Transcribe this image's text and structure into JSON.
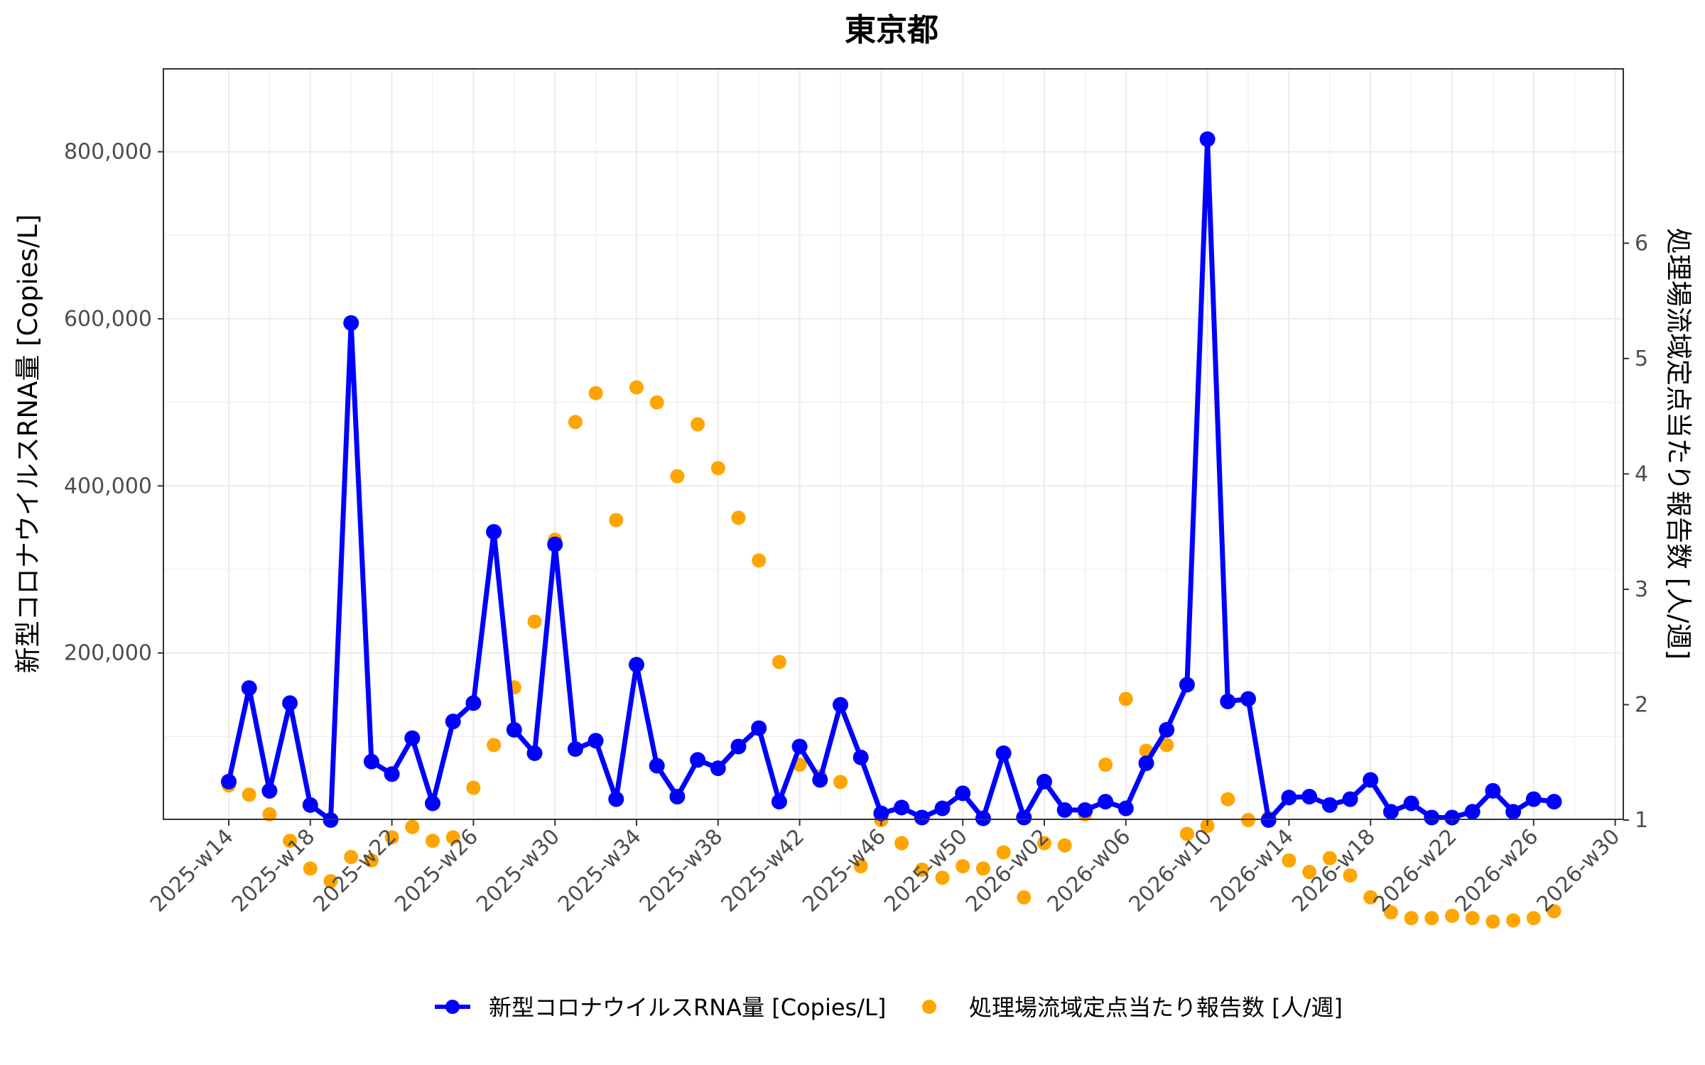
{
  "chart_data": {
    "type": "line",
    "title": "東京都",
    "y_left_label": "新型コロナウイルスRNA量 [Copies/L]",
    "y_right_label": "処理場流域定点当たり報告数 [人/週]",
    "y_left_ticks": [
      "200,000",
      "400,000",
      "600,000",
      "800,000"
    ],
    "y_right_ticks": [
      "1",
      "2",
      "3",
      "4",
      "5",
      "6"
    ],
    "x_tick_labels": [
      "2025-w14",
      "2025-w18",
      "2025-w22",
      "2025-w26",
      "2025-w30",
      "2025-w34",
      "2025-w38",
      "2025-w42",
      "2025-w46",
      "2025-w50",
      "2026-w02",
      "2026-w06",
      "2026-w10",
      "2026-w14",
      "2026-w18",
      "2026-w22",
      "2026-w26",
      "2026-w30"
    ],
    "grid": true,
    "legend_position": "bottom",
    "series": [
      {
        "name": "新型コロナウイルスRNA量 [Copies/L]",
        "axis": "left",
        "style": "line+points",
        "color": "#0000ff",
        "values": [
          46000,
          158000,
          35000,
          140000,
          18000,
          0,
          595000,
          70000,
          55000,
          98000,
          20000,
          118000,
          140000,
          345000,
          108000,
          80000,
          330000,
          85000,
          95000,
          25000,
          186000,
          65000,
          28000,
          72000,
          62000,
          88000,
          110000,
          22000,
          88000,
          48000,
          138000,
          75000,
          8000,
          15000,
          3000,
          14000,
          32000,
          2000,
          80000,
          3000,
          46000,
          12000,
          12000,
          22000,
          14000,
          68000,
          108000,
          162000,
          815000,
          142000,
          145000,
          0,
          27000,
          28000,
          18000,
          25000,
          48000,
          10000,
          20000,
          3000,
          3000,
          10000,
          35000,
          10000,
          25000,
          22000
        ]
      },
      {
        "name": "処理場流域定点当たり報告数 [人/週]",
        "axis": "right",
        "style": "points",
        "color": "#ffa500",
        "values": [
          1.3,
          1.22,
          1.05,
          0.82,
          0.58,
          0.47,
          0.68,
          0.65,
          0.85,
          0.94,
          0.82,
          0.85,
          1.28,
          1.65,
          2.15,
          2.72,
          3.43,
          4.45,
          4.7,
          3.6,
          4.75,
          4.62,
          3.98,
          4.43,
          4.05,
          3.62,
          3.25,
          2.37,
          1.48,
          1.38,
          1.33,
          0.6,
          1.0,
          0.8,
          0.57,
          0.5,
          0.6,
          0.58,
          0.72,
          0.33,
          0.8,
          0.78,
          1.05,
          1.48,
          2.05,
          1.6,
          1.65,
          0.88,
          0.95,
          1.18,
          1.0,
          1.02,
          0.65,
          0.55,
          0.67,
          0.52,
          0.33,
          0.2,
          0.15,
          0.15,
          0.17,
          0.15,
          0.12,
          0.13,
          0.15,
          0.21
        ]
      }
    ]
  }
}
